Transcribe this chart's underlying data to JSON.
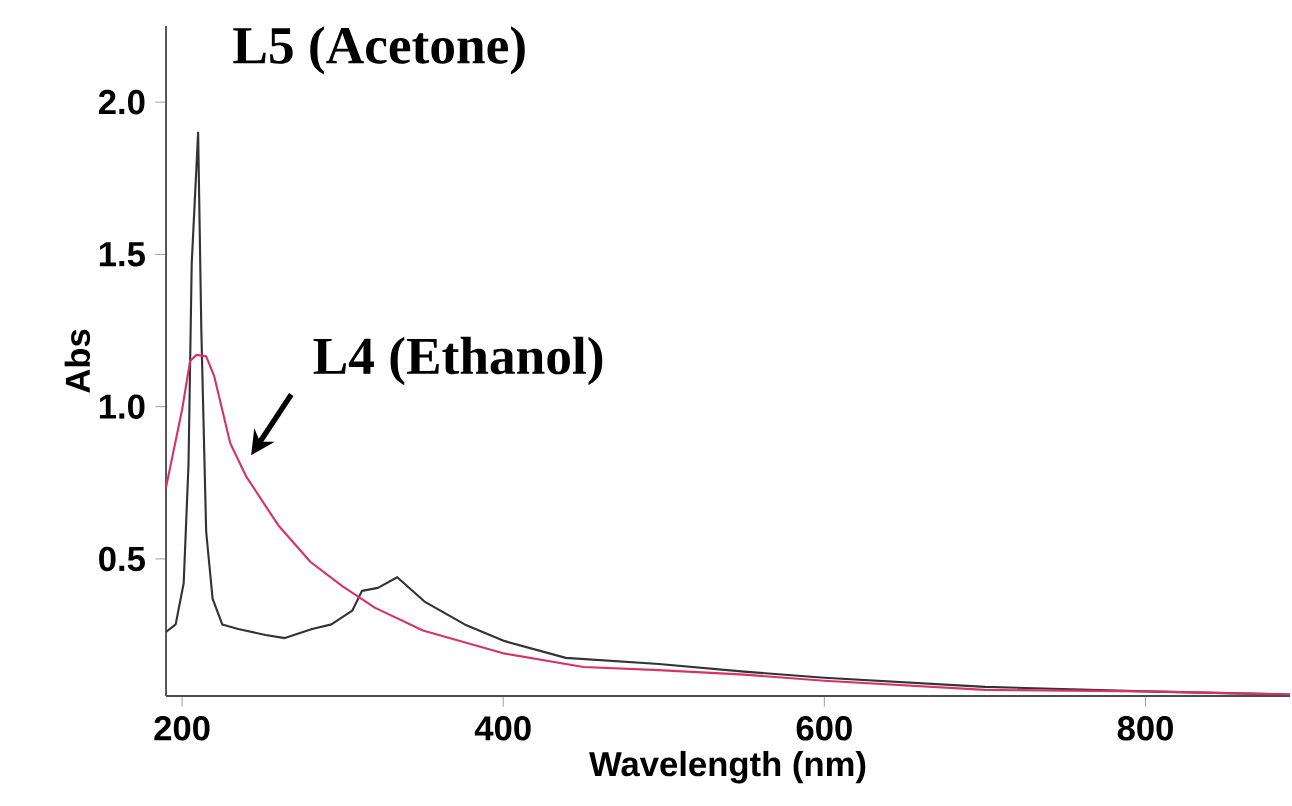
{
  "chart_data": {
    "type": "line",
    "xlabel": "Wavelength (nm)",
    "ylabel": "Abs",
    "xlim": [
      190,
      890
    ],
    "ylim": [
      0.05,
      2.25
    ],
    "xticks": [
      200,
      400,
      600,
      800
    ],
    "yticks": [
      0.5,
      {
        "value": 1.0,
        "label": "1.0"
      },
      1.5,
      {
        "value": 2.0,
        "label": "2.0"
      }
    ],
    "grid": false,
    "legend": false,
    "marker": "none",
    "line_style": "solid",
    "series": [
      {
        "name": "L5 (Acetone)",
        "color": "#333333",
        "x": [
          190,
          196,
          201,
          204,
          206,
          208,
          209,
          210,
          212,
          215,
          219,
          225,
          235,
          252,
          264,
          281,
          293,
          306,
          312,
          322,
          334,
          351,
          376,
          401,
          439,
          497,
          550,
          600,
          700,
          800,
          890
        ],
        "values": [
          0.26,
          0.285,
          0.42,
          0.81,
          1.47,
          null,
          null,
          1.9,
          1.25,
          0.59,
          0.37,
          0.285,
          0.27,
          0.25,
          0.24,
          0.27,
          0.285,
          0.33,
          0.395,
          0.405,
          0.44,
          0.36,
          0.285,
          0.23,
          0.175,
          0.155,
          0.13,
          0.11,
          0.08,
          0.065,
          0.055
        ]
      },
      {
        "name": "L4 (Ethanol)",
        "color": "#d6336c",
        "x": [
          190,
          200,
          205,
          209,
          215,
          220,
          225,
          230,
          240,
          260,
          280,
          300,
          320,
          350,
          400,
          450,
          497,
          550,
          600,
          700,
          800,
          890
        ],
        "values": [
          0.735,
          0.99,
          1.15,
          1.17,
          1.165,
          1.1,
          0.99,
          0.88,
          0.77,
          0.61,
          0.49,
          0.41,
          0.34,
          0.265,
          0.19,
          0.145,
          0.135,
          0.12,
          0.1,
          0.07,
          0.065,
          0.055
        ]
      }
    ]
  }
}
